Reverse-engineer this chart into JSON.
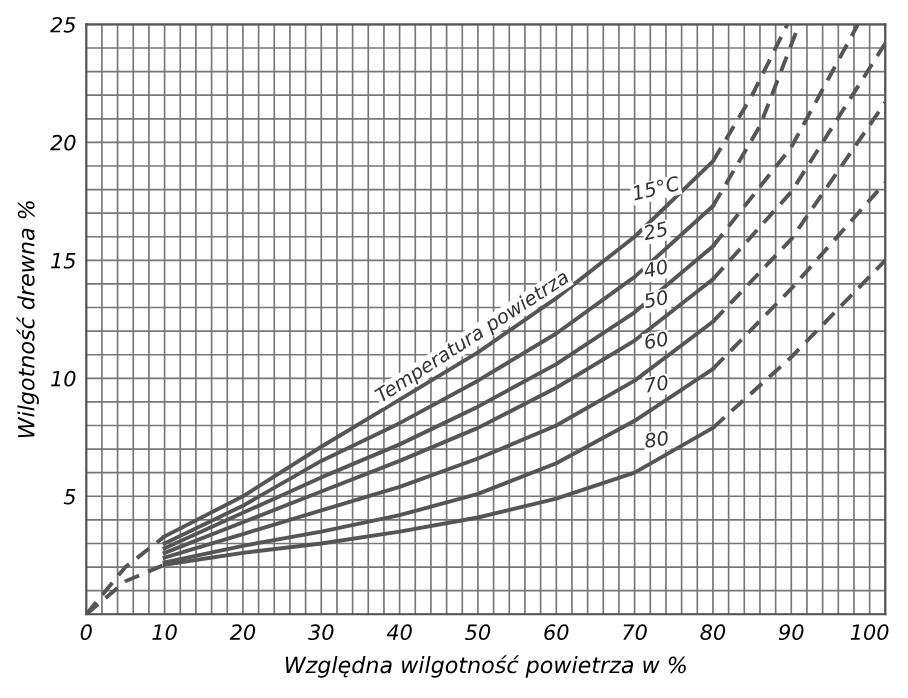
{
  "chart_data": {
    "type": "line",
    "xlabel": "Względna wilgotność powietrza w %",
    "ylabel": "Wilgotność drewna %",
    "annotations": [
      "Temperatura powietrza"
    ],
    "xlim": [
      0,
      102
    ],
    "ylim": [
      0,
      25
    ],
    "xticks": [
      0,
      10,
      20,
      30,
      40,
      50,
      60,
      70,
      80,
      90,
      100
    ],
    "yticks": [
      5,
      10,
      15,
      20,
      25
    ],
    "grid": true,
    "legend": false,
    "marker": "none",
    "series": [
      {
        "name": "15°C",
        "color": "#555555",
        "line_style": "solid",
        "x": [
          10,
          20,
          30,
          40,
          50,
          60,
          70,
          80
        ],
        "values": [
          3.3,
          5.0,
          7.1,
          9.1,
          11.1,
          13.4,
          16.0,
          19.2
        ]
      },
      {
        "name": "25",
        "color": "#555555",
        "line_style": "solid",
        "x": [
          10,
          20,
          30,
          40,
          50,
          60,
          70,
          80
        ],
        "values": [
          3.0,
          4.6,
          6.5,
          8.1,
          9.9,
          11.9,
          14.3,
          17.3
        ]
      },
      {
        "name": "40",
        "color": "#555555",
        "line_style": "solid",
        "x": [
          10,
          20,
          30,
          40,
          50,
          60,
          70,
          80
        ],
        "values": [
          2.8,
          4.3,
          5.8,
          7.2,
          8.8,
          10.6,
          12.8,
          15.6
        ]
      },
      {
        "name": "50",
        "color": "#555555",
        "line_style": "solid",
        "x": [
          10,
          20,
          30,
          40,
          50,
          60,
          70,
          80
        ],
        "values": [
          2.6,
          3.9,
          5.2,
          6.5,
          7.9,
          9.6,
          11.6,
          14.2
        ]
      },
      {
        "name": "60",
        "color": "#555555",
        "line_style": "solid",
        "x": [
          10,
          20,
          30,
          40,
          50,
          60,
          70,
          80
        ],
        "values": [
          2.4,
          3.4,
          4.4,
          5.4,
          6.6,
          8.0,
          9.9,
          12.4
        ]
      },
      {
        "name": "70",
        "color": "#555555",
        "line_style": "solid",
        "x": [
          10,
          20,
          30,
          40,
          50,
          60,
          70,
          80
        ],
        "values": [
          2.2,
          2.9,
          3.5,
          4.2,
          5.1,
          6.4,
          8.2,
          10.4
        ]
      },
      {
        "name": "80",
        "color": "#555555",
        "line_style": "solid",
        "x": [
          10,
          20,
          30,
          40,
          50,
          60,
          70,
          80
        ],
        "values": [
          2.1,
          2.6,
          3.0,
          3.5,
          4.1,
          4.9,
          6.0,
          7.9
        ]
      },
      {
        "color": "#555555",
        "line_style": "dashed",
        "x": [
          80,
          85,
          89.5
        ],
        "values": [
          19.2,
          22.0,
          25
        ]
      },
      {
        "color": "#555555",
        "line_style": "dashed",
        "x": [
          80,
          86,
          91
        ],
        "values": [
          17.3,
          20.7,
          25
        ]
      },
      {
        "color": "#555555",
        "line_style": "dashed",
        "x": [
          80,
          90,
          98.5
        ],
        "values": [
          15.6,
          19.8,
          25
        ]
      },
      {
        "color": "#555555",
        "line_style": "dashed",
        "x": [
          80,
          90,
          102
        ],
        "values": [
          14.2,
          17.9,
          24.2
        ]
      },
      {
        "color": "#555555",
        "line_style": "dashed",
        "x": [
          80,
          90,
          102
        ],
        "values": [
          12.4,
          15.9,
          21.7
        ]
      },
      {
        "color": "#555555",
        "line_style": "dashed",
        "x": [
          80,
          90,
          102
        ],
        "values": [
          10.4,
          13.8,
          18.3
        ]
      },
      {
        "color": "#555555",
        "line_style": "dashed",
        "x": [
          80,
          90,
          102
        ],
        "values": [
          7.9,
          10.9,
          15.0
        ]
      },
      {
        "color": "#555555",
        "line_style": "dashed",
        "x": [
          0,
          5,
          10
        ],
        "values": [
          0,
          2.0,
          3.3
        ]
      },
      {
        "color": "#555555",
        "line_style": "dashed",
        "x": [
          0,
          5,
          10
        ],
        "values": [
          0,
          1.4,
          2.1
        ]
      }
    ]
  }
}
